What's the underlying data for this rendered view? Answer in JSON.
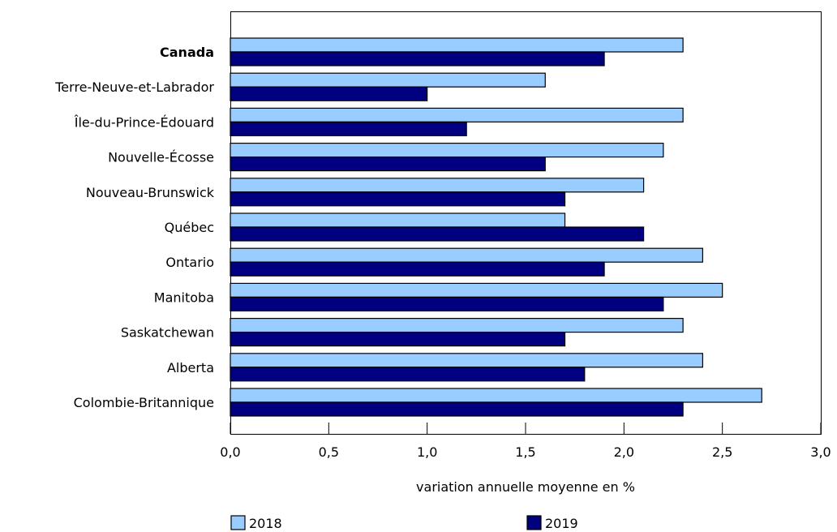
{
  "chart_data": {
    "type": "bar",
    "orientation": "horizontal",
    "categories": [
      "Canada",
      "Terre-Neuve-et-Labrador",
      "Île-du-Prince-Édouard",
      "Nouvelle-Écosse",
      "Nouveau-Brunswick",
      "Québec",
      "Ontario",
      "Manitoba",
      "Saskatchewan",
      "Alberta",
      "Colombie-Britannique"
    ],
    "bold_categories": [
      "Canada"
    ],
    "series": [
      {
        "name": "2018",
        "color": "#99ccff",
        "values": [
          2.3,
          1.6,
          2.3,
          2.2,
          2.1,
          1.7,
          2.4,
          2.5,
          2.3,
          2.4,
          2.7
        ]
      },
      {
        "name": "2019",
        "color": "#000080",
        "values": [
          1.9,
          1.0,
          1.2,
          1.6,
          1.7,
          2.1,
          1.9,
          2.2,
          1.7,
          1.8,
          2.3
        ]
      }
    ],
    "xlabel": "variation annuelle moyenne en %",
    "ylabel": "",
    "xlim": [
      0,
      3.0
    ],
    "xticks": [
      0,
      0.5,
      1.0,
      1.5,
      2.0,
      2.5,
      3.0
    ],
    "xtick_labels": [
      "0,0",
      "0,5",
      "1,0",
      "1,5",
      "2,0",
      "2,5",
      "3,0"
    ],
    "grid": false,
    "legend_position": "bottom"
  }
}
